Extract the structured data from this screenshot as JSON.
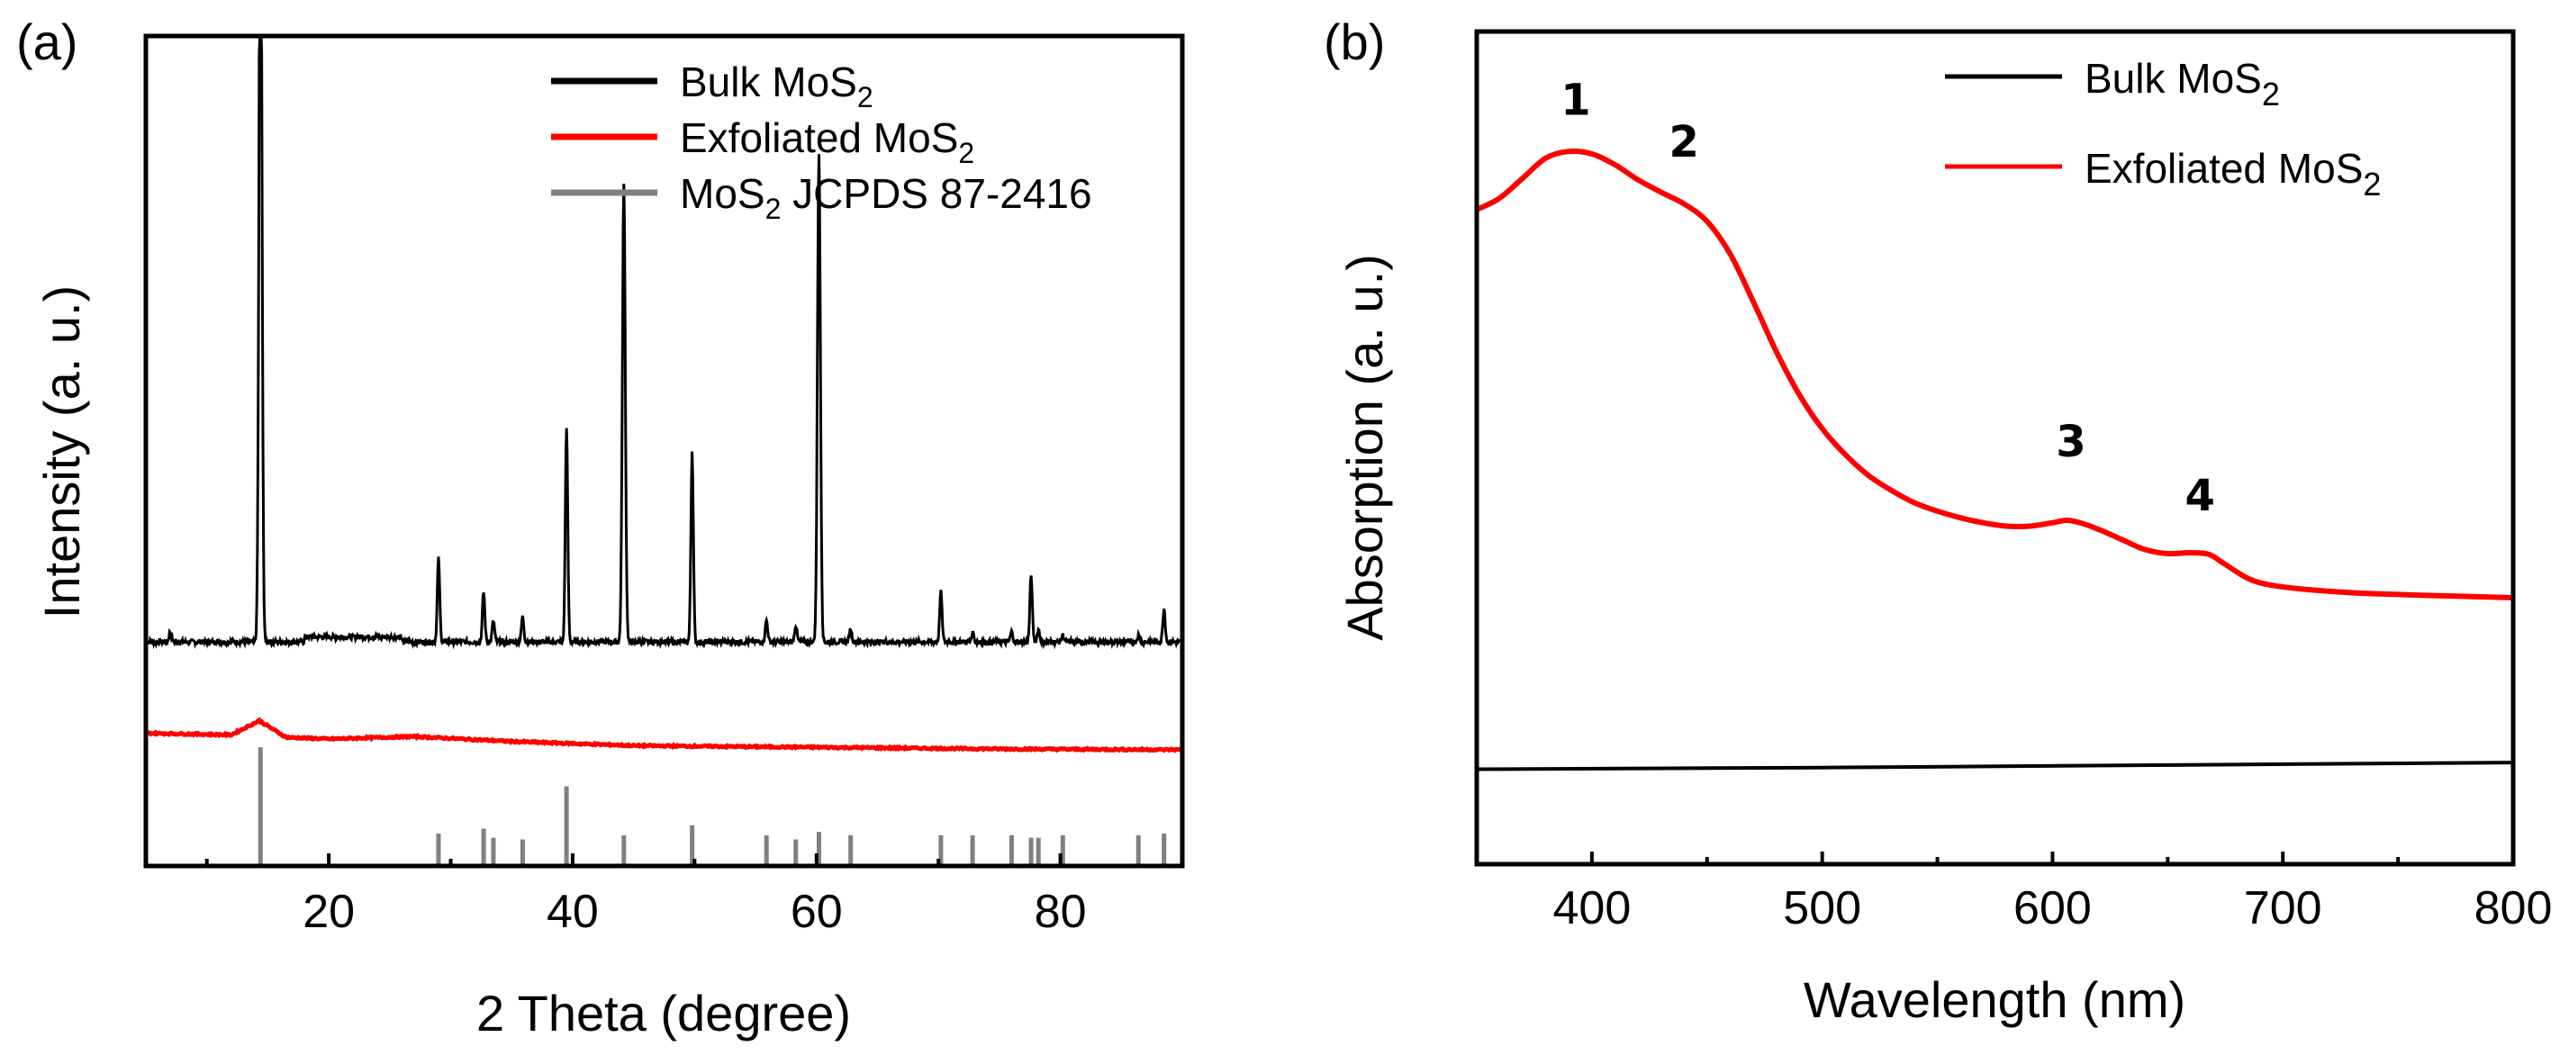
{
  "figure": {
    "panel_a_label": "(a)",
    "panel_b_label": "(b)"
  },
  "chart_data": [
    {
      "type": "line",
      "panel": "(a)",
      "title": "",
      "xlabel": "2 Theta (degree)",
      "ylabel": "Intensity (a. u.)",
      "xlim": [
        5,
        90
      ],
      "xticks": [
        20,
        40,
        60,
        80
      ],
      "yticks_shown": false,
      "legend": {
        "position": "top-right",
        "entries": [
          {
            "base": "Bulk MoS",
            "sub": "2",
            "tail": "",
            "color": "#000000"
          },
          {
            "base": "Exfoliated MoS",
            "sub": "2",
            "tail": "",
            "color": "#ff0000"
          },
          {
            "base": "MoS",
            "sub": "2",
            "tail": " JCPDS 87-2416",
            "color": "#808080"
          }
        ]
      },
      "series": [
        {
          "name": "Bulk MoS2",
          "color": "#000000",
          "baseline": 0.27,
          "peaks": [
            {
              "x": 7.0,
              "h": 0.012
            },
            {
              "x": 14.4,
              "h": 1.0
            },
            {
              "x": 29.0,
              "h": 0.1
            },
            {
              "x": 32.7,
              "h": 0.06
            },
            {
              "x": 33.5,
              "h": 0.025
            },
            {
              "x": 35.9,
              "h": 0.03
            },
            {
              "x": 39.5,
              "h": 0.26
            },
            {
              "x": 44.2,
              "h": 0.55
            },
            {
              "x": 49.8,
              "h": 0.23
            },
            {
              "x": 55.9,
              "h": 0.026
            },
            {
              "x": 58.3,
              "h": 0.02
            },
            {
              "x": 60.2,
              "h": 0.59
            },
            {
              "x": 62.8,
              "h": 0.016
            },
            {
              "x": 70.2,
              "h": 0.06
            },
            {
              "x": 72.8,
              "h": 0.01
            },
            {
              "x": 76.0,
              "h": 0.012
            },
            {
              "x": 77.6,
              "h": 0.08
            },
            {
              "x": 78.2,
              "h": 0.015
            },
            {
              "x": 80.2,
              "h": 0.008
            },
            {
              "x": 86.4,
              "h": 0.008
            },
            {
              "x": 88.5,
              "h": 0.04
            }
          ]
        },
        {
          "name": "Exfoliated MoS2",
          "color": "#ff0000",
          "points": [
            [
              5,
              0.16
            ],
            [
              12,
              0.158
            ],
            [
              14.3,
              0.175
            ],
            [
              16.5,
              0.155
            ],
            [
              20,
              0.153
            ],
            [
              27,
              0.156
            ],
            [
              35,
              0.15
            ],
            [
              45,
              0.145
            ],
            [
              60,
              0.143
            ],
            [
              75,
              0.141
            ],
            [
              90,
              0.14
            ]
          ]
        },
        {
          "name": "MoS2 JCPDS 87-2416",
          "color": "#808080",
          "type": "stick",
          "sticks": [
            {
              "x": 14.4,
              "h": 0.143
            },
            {
              "x": 29.0,
              "h": 0.039
            },
            {
              "x": 32.7,
              "h": 0.045
            },
            {
              "x": 33.5,
              "h": 0.034
            },
            {
              "x": 35.9,
              "h": 0.032
            },
            {
              "x": 39.5,
              "h": 0.096
            },
            {
              "x": 44.2,
              "h": 0.037
            },
            {
              "x": 49.8,
              "h": 0.049
            },
            {
              "x": 55.9,
              "h": 0.037
            },
            {
              "x": 58.3,
              "h": 0.032
            },
            {
              "x": 60.2,
              "h": 0.041
            },
            {
              "x": 62.8,
              "h": 0.037
            },
            {
              "x": 70.2,
              "h": 0.037
            },
            {
              "x": 72.8,
              "h": 0.037
            },
            {
              "x": 76.0,
              "h": 0.037
            },
            {
              "x": 77.6,
              "h": 0.034
            },
            {
              "x": 78.2,
              "h": 0.034
            },
            {
              "x": 80.2,
              "h": 0.037
            },
            {
              "x": 86.4,
              "h": 0.037
            },
            {
              "x": 88.5,
              "h": 0.039
            }
          ]
        }
      ]
    },
    {
      "type": "line",
      "panel": "(b)",
      "title": "",
      "xlabel": "Wavelength (nm)",
      "ylabel": "Absorption (a. u.)",
      "xlim": [
        350,
        800
      ],
      "xticks": [
        400,
        500,
        600,
        700,
        800
      ],
      "yticks_shown": false,
      "legend": {
        "position": "top-right",
        "entries": [
          {
            "base": "Bulk MoS",
            "sub": "2",
            "tail": "",
            "color": "#000000"
          },
          {
            "base": "Exfoliated MoS",
            "sub": "2",
            "tail": "",
            "color": "#ff0000"
          }
        ]
      },
      "annotations": [
        {
          "text": "1",
          "x": 393,
          "y": 0.9
        },
        {
          "text": "2",
          "x": 440,
          "y": 0.85
        },
        {
          "text": "3",
          "x": 608,
          "y": 0.49
        },
        {
          "text": "4",
          "x": 664,
          "y": 0.425
        }
      ],
      "series": [
        {
          "name": "Bulk MoS2",
          "color": "#000000",
          "points": [
            [
              350,
              0.114
            ],
            [
              500,
              0.116
            ],
            [
              650,
              0.119
            ],
            [
              800,
              0.122
            ]
          ]
        },
        {
          "name": "Exfoliated MoS2",
          "color": "#ff0000",
          "points": [
            [
              350,
              0.786
            ],
            [
              360,
              0.8
            ],
            [
              370,
              0.824
            ],
            [
              380,
              0.848
            ],
            [
              390,
              0.856
            ],
            [
              400,
              0.853
            ],
            [
              410,
              0.84
            ],
            [
              420,
              0.822
            ],
            [
              430,
              0.807
            ],
            [
              440,
              0.793
            ],
            [
              450,
              0.772
            ],
            [
              460,
              0.733
            ],
            [
              470,
              0.676
            ],
            [
              480,
              0.616
            ],
            [
              490,
              0.564
            ],
            [
              500,
              0.523
            ],
            [
              510,
              0.492
            ],
            [
              520,
              0.467
            ],
            [
              530,
              0.449
            ],
            [
              540,
              0.434
            ],
            [
              550,
              0.424
            ],
            [
              560,
              0.416
            ],
            [
              570,
              0.41
            ],
            [
              580,
              0.406
            ],
            [
              590,
              0.406
            ],
            [
              600,
              0.41
            ],
            [
              606,
              0.413
            ],
            [
              612,
              0.41
            ],
            [
              620,
              0.402
            ],
            [
              630,
              0.39
            ],
            [
              640,
              0.378
            ],
            [
              650,
              0.373
            ],
            [
              660,
              0.374
            ],
            [
              668,
              0.372
            ],
            [
              675,
              0.36
            ],
            [
              685,
              0.343
            ],
            [
              695,
              0.335
            ],
            [
              710,
              0.33
            ],
            [
              730,
              0.326
            ],
            [
              760,
              0.323
            ],
            [
              800,
              0.32
            ]
          ]
        }
      ]
    }
  ]
}
